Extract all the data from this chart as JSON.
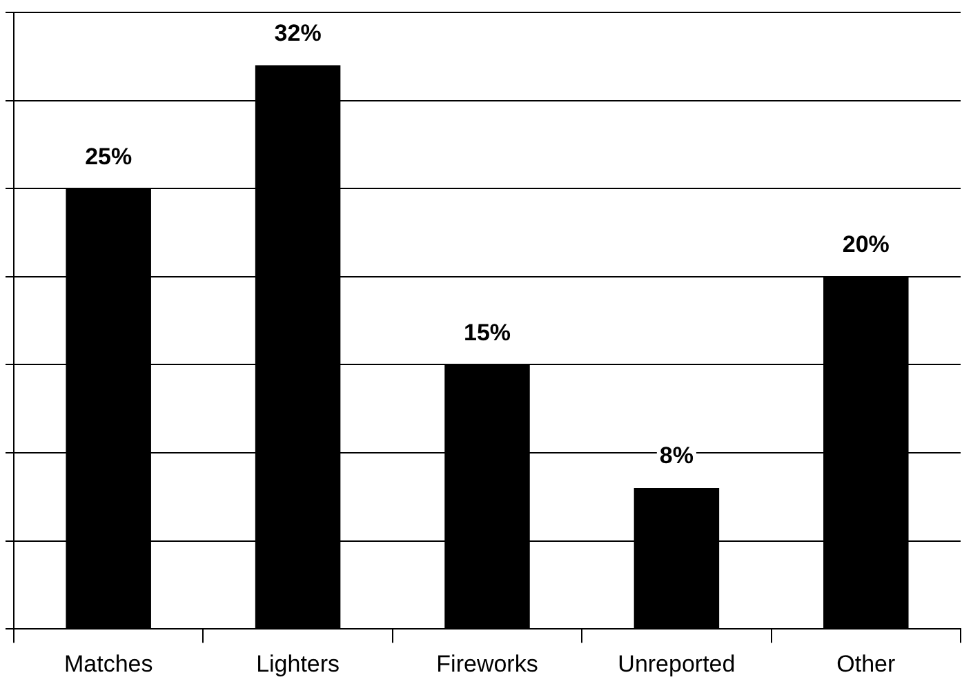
{
  "chart_data": {
    "type": "bar",
    "categories": [
      "Matches",
      "Lighters",
      "Fireworks",
      "Unreported",
      "Other"
    ],
    "values": [
      25,
      32,
      15,
      8,
      20
    ],
    "value_labels": [
      "25%",
      "32%",
      "15%",
      "8%",
      "20%"
    ],
    "color": "#000000",
    "ylim": [
      0,
      35
    ],
    "yticks": [
      {
        "value": 0,
        "label": null
      },
      {
        "value": 5,
        "label": null
      },
      {
        "value": 10,
        "label": null
      },
      {
        "value": 15,
        "label": null
      },
      {
        "value": 20,
        "label": null
      },
      {
        "value": 25,
        "label": null
      },
      {
        "value": 30,
        "label": null
      },
      {
        "value": 35,
        "label": null
      }
    ],
    "grid": "y",
    "legend": false,
    "tick_labels": "x"
  }
}
